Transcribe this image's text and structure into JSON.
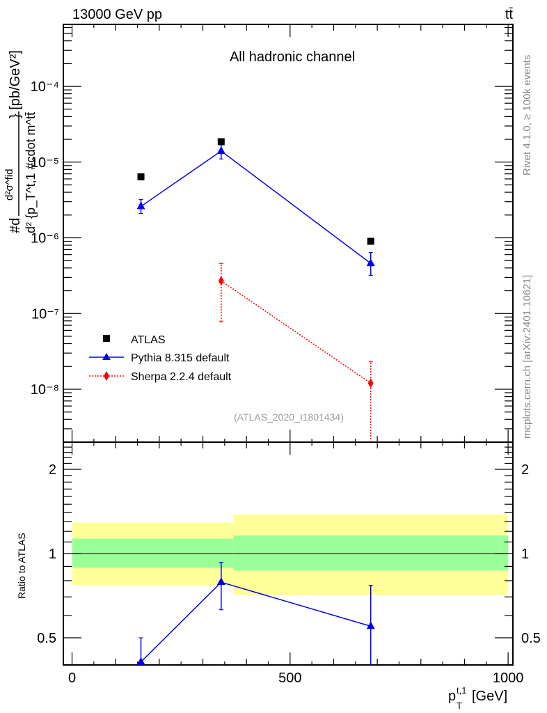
{
  "header": {
    "left": "13000 GeV pp",
    "right": "tt̄"
  },
  "side_text": {
    "rivet": "Rivet 4.1.0, ≥ 100k events",
    "mcplots": "mcplots.cern.ch [arXiv:2401.10621]"
  },
  "colors": {
    "atlas": "#000000",
    "pythia": "#0000ee",
    "sherpa": "#ff0000",
    "band_inner": "#99ff99",
    "band_outer": "#ffff99"
  },
  "chart_data": [
    {
      "type": "scatter",
      "title": "All hadronic channel",
      "watermark": "(ATLAS_2020_I1801434)",
      "ylabel_parts": [
        "#d",
        "d²σ^fid",
        "d² {p_T^t,1 #cdot m^tt̄",
        "} [pb/GeV²]"
      ],
      "yscale": "log",
      "ylim": [
        2e-09,
        0.00066
      ],
      "xlim": [
        -20,
        1011
      ],
      "ytick_labels": [
        "10⁻⁸",
        "10⁻⁷",
        "10⁻⁶",
        "10⁻⁵",
        "10⁻⁴"
      ],
      "ytick_values": [
        1e-08,
        1e-07,
        1e-06,
        1e-05,
        0.0001
      ],
      "legend_position": "bottom-left",
      "series": [
        {
          "name": "ATLAS",
          "marker": "square",
          "x": [
            158,
            342,
            685
          ],
          "y": [
            6.4e-06,
            1.86e-05,
            9e-07
          ],
          "yerr_lo": [
            null,
            null,
            null
          ],
          "yerr_hi": [
            null,
            null,
            null
          ]
        },
        {
          "name": "Pythia 8.315 default",
          "marker": "triangle",
          "line": "solid",
          "x": [
            158,
            342,
            685
          ],
          "y": [
            2.6e-06,
            1.4e-05,
            4.6e-07
          ],
          "yerr_lo": [
            2.1e-06,
            1.1e-05,
            3.2e-07
          ],
          "yerr_hi": [
            3.2e-06,
            1.7e-05,
            6.4e-07
          ]
        },
        {
          "name": "Sherpa 2.2.4 default",
          "marker": "diamond",
          "line": "dotted",
          "x": [
            342,
            685
          ],
          "y": [
            2.7e-07,
            1.2e-08
          ],
          "yerr_lo": [
            7.8e-08,
            2e-09
          ],
          "yerr_hi": [
            4.6e-07,
            2.3e-08
          ]
        }
      ]
    },
    {
      "type": "scatter",
      "ylabel": "Ratio to ATLAS",
      "xlabel": "p_T^t,1 [GeV]",
      "xlabel_main": "p",
      "xlabel_sup": "t,1",
      "xlabel_sub": "T",
      "xlabel_unit": "[GeV]",
      "yscale": "log",
      "ylim": [
        0.4,
        2.5
      ],
      "xlim": [
        -20,
        1011
      ],
      "xtick_labels": [
        "0",
        "500",
        "1000"
      ],
      "xtick_values": [
        0,
        500,
        1000
      ],
      "ytick_labels": [
        "0.5",
        "1",
        "2"
      ],
      "ytick_values": [
        0.5,
        1,
        2
      ],
      "bands": [
        {
          "x0": 0,
          "x1": 370,
          "inner": [
            0.89,
            1.13
          ],
          "outer": [
            0.77,
            1.29
          ]
        },
        {
          "x0": 370,
          "x1": 1000,
          "inner": [
            0.87,
            1.16
          ],
          "outer": [
            0.71,
            1.38
          ]
        }
      ],
      "series": [
        {
          "name": "Pythia 8.315 default",
          "x": [
            158,
            342,
            685
          ],
          "y": [
            0.41,
            0.79,
            0.55
          ],
          "yerr_lo": [
            0.38,
            0.63,
            0.38
          ],
          "yerr_hi": [
            0.5,
            0.93,
            0.77
          ]
        }
      ]
    }
  ]
}
